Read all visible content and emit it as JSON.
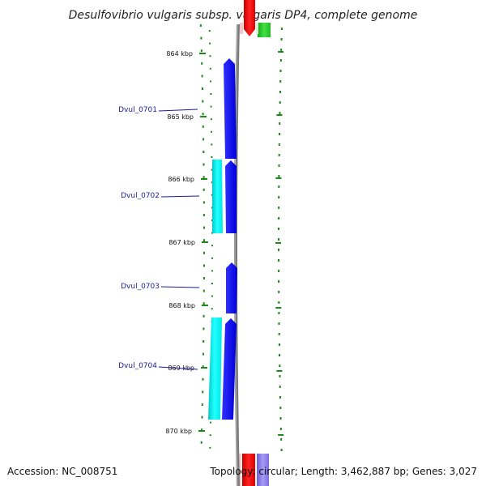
{
  "title": "Desulfovibrio vulgaris subsp. vulgaris DP4, complete genome",
  "footer": {
    "accession": "Accession: NC_008751",
    "summary": "Topology: circular; Length: 3,462,887 bp; Genes: 3,027"
  },
  "ticks": [
    {
      "label": "864 kbp"
    },
    {
      "label": "865 kbp"
    },
    {
      "label": "866 kbp"
    },
    {
      "label": "867 kbp"
    },
    {
      "label": "868 kbp"
    },
    {
      "label": "869 kbp"
    },
    {
      "label": "870 kbp"
    }
  ],
  "genes": [
    {
      "label": "Dvul_0701"
    },
    {
      "label": "Dvul_0702"
    },
    {
      "label": "Dvul_0703"
    },
    {
      "label": "Dvul_0704"
    }
  ],
  "colors": {
    "cds": "#0000ee",
    "cds_light": "#00dddd",
    "ruler": "#1a8a1a",
    "backbone": "#888888",
    "red_feature": "#ee0000",
    "green_feature": "#22cc22",
    "purple_feature": "#7b6ee0",
    "gene_label": "#1a1aa0"
  }
}
